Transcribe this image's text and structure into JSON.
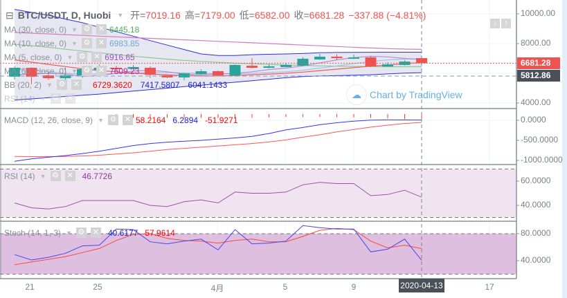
{
  "header": {
    "symbol": "BTC/USDT, D, Huobi",
    "open_label": "开=",
    "open": "7019.16",
    "high_label": "高=",
    "high": "7179.00",
    "low_label": "低=",
    "low": "6582.00",
    "close_label": "收=",
    "close": "6681.28",
    "change": "−337.88 (−4.81%)"
  },
  "legends": {
    "ma30": {
      "label": "MA (30, close, 0)",
      "value": "6445.18",
      "color": "#4caf50"
    },
    "ma10": {
      "label": "MA (10, close, 0)",
      "value": "6983.85",
      "color": "#6fa8dc"
    },
    "ma5": {
      "label": "MA (5, close, 0)",
      "value": "6916.65",
      "color": "#9c4fc0"
    },
    "ma60": {
      "label": "MA (60, close, 0)",
      "value": "7609.23",
      "color": "#b02b8f"
    },
    "bb": {
      "label": "BB (20, 2)",
      "basis": "6729.3620",
      "upper": "7417.5807",
      "lower": "6041.1433"
    },
    "rsi_ghost": {
      "label": "RSI (14)"
    },
    "macd": {
      "label": "MACD (12, 26, close, 9)",
      "hist": "58.2164",
      "macd": "6.2894",
      "signal": "-51.9271"
    },
    "rsi": {
      "label": "RSI (14)",
      "value": "46.7726"
    },
    "stoch": {
      "label": "Stoch (14, 1, 3)",
      "k": "40.6177",
      "d": "57.9614"
    }
  },
  "watermark": "Chart by TradingView",
  "price_axis": {
    "main": [
      "10000.00",
      "8000.00",
      "4000.00"
    ],
    "macd": [
      "0.0000",
      "-500.0000",
      "-1000.0000"
    ],
    "rsi": [
      "60.0000",
      "40.0000"
    ],
    "stoch": [
      "80.0000",
      "40.0000"
    ]
  },
  "badges": {
    "last_price": "6681.28",
    "line_price": "5812.86"
  },
  "time_axis": {
    "labels": [
      "21",
      "25",
      "4月",
      "5",
      "9",
      "17"
    ],
    "crosshair_date": "2020-04-13"
  },
  "colors": {
    "up": "#26a69a",
    "down": "#ef5350",
    "bb_band": "#2a2af0",
    "bb_fill": "#e3e3f0",
    "rsi_fill": "#f1e4f1",
    "stoch_fill": "#dfbfdf"
  },
  "chart_data": {
    "candles": [
      [
        5770,
        6460,
        5580,
        6370
      ],
      [
        6370,
        6400,
        5260,
        5770
      ],
      [
        5860,
        6090,
        5560,
        5670
      ],
      [
        5670,
        6370,
        5260,
        5860
      ],
      [
        5860,
        6510,
        5700,
        6280
      ],
      [
        6230,
        6600,
        6200,
        6370
      ],
      [
        6370,
        6500,
        6150,
        6280
      ],
      [
        6300,
        6560,
        6280,
        6420
      ],
      [
        6370,
        6460,
        5680,
        5900
      ],
      [
        5860,
        5910,
        5680,
        5720
      ],
      [
        5720,
        6050,
        5530,
        5990
      ],
      [
        5950,
        6270,
        5900,
        6140
      ],
      [
        6140,
        6190,
        5800,
        5860
      ],
      [
        5860,
        6600,
        5790,
        6560
      ],
      [
        6510,
        7020,
        6330,
        6370
      ],
      [
        6370,
        6600,
        6330,
        6470
      ],
      [
        6420,
        6700,
        6400,
        6560
      ],
      [
        6510,
        7100,
        6480,
        6980
      ],
      [
        6930,
        7300,
        6900,
        7120
      ],
      [
        7120,
        7280,
        6930,
        7020
      ],
      [
        6980,
        7250,
        6950,
        7070
      ],
      [
        7070,
        7120,
        6420,
        6460
      ],
      [
        6460,
        6750,
        6430,
        6600
      ],
      [
        6560,
        6880,
        6530,
        6790
      ],
      [
        7019.16,
        7179.0,
        6582.0,
        6681.28
      ]
    ],
    "ma60": [
      8750,
      8700,
      8650,
      8600,
      8550,
      8500,
      8450,
      8400,
      8350,
      8300,
      8250,
      8200,
      8150,
      8100,
      8050,
      8000,
      7950,
      7900,
      7850,
      7800,
      7750,
      7700,
      7660,
      7630,
      7609.23
    ],
    "ma30": [
      7950,
      7850,
      7750,
      7620,
      7500,
      7380,
      7260,
      7150,
      7050,
      6950,
      6870,
      6800,
      6740,
      6680,
      6640,
      6600,
      6560,
      6530,
      6500,
      6480,
      6460,
      6450,
      6440,
      6440,
      6445.18
    ],
    "ma10": [
      6300,
      6200,
      6100,
      6000,
      5950,
      5950,
      5980,
      6000,
      6050,
      6050,
      6020,
      6000,
      5980,
      5950,
      6000,
      6050,
      6100,
      6200,
      6350,
      6500,
      6650,
      6800,
      6900,
      6950,
      6983.85
    ],
    "ma5": [
      5900,
      5950,
      6000,
      5950,
      5800,
      5850,
      6000,
      6150,
      6200,
      6100,
      5950,
      5900,
      5950,
      6000,
      6100,
      6250,
      6350,
      6500,
      6700,
      6900,
      7050,
      7150,
      7100,
      7000,
      6916.65
    ],
    "bb_basis": [
      6900,
      6750,
      6600,
      6450,
      6300,
      6180,
      6100,
      6020,
      5950,
      5900,
      5850,
      5820,
      5820,
      5850,
      5900,
      5950,
      6000,
      6080,
      6180,
      6280,
      6380,
      6480,
      6560,
      6640,
      6729.36
    ],
    "bb_upper": [
      10300,
      10100,
      9900,
      9650,
      9400,
      9100,
      8800,
      8500,
      8200,
      7900,
      7600,
      7300,
      7200,
      7200,
      7250,
      7280,
      7300,
      7330,
      7380,
      7400,
      7410,
      7415,
      7417,
      7417,
      7417.58
    ],
    "bb_lower": [
      4200,
      4280,
      4360,
      4440,
      4520,
      4600,
      4700,
      4800,
      4900,
      5000,
      5100,
      5200,
      5300,
      5400,
      5500,
      5600,
      5700,
      5780,
      5820,
      5840,
      5870,
      5900,
      5960,
      6010,
      6041.14
    ],
    "macd": [
      -1020,
      -960,
      -920,
      -880,
      -830,
      -770,
      -700,
      -630,
      -580,
      -545,
      -520,
      -500,
      -470,
      -440,
      -400,
      -330,
      -240,
      -180,
      -110,
      -60,
      -20,
      5,
      10,
      8,
      6.29
    ],
    "signal": [
      -900,
      -905,
      -905,
      -900,
      -890,
      -870,
      -840,
      -810,
      -770,
      -730,
      -700,
      -670,
      -640,
      -610,
      -580,
      -540,
      -490,
      -420,
      -360,
      -290,
      -230,
      -170,
      -120,
      -80,
      -51.93
    ],
    "rsi": [
      42,
      38,
      37,
      39,
      44,
      44,
      44,
      44,
      40,
      39,
      43,
      44.5,
      42,
      51,
      50,
      50,
      51,
      57,
      59,
      58,
      58,
      48,
      49,
      52.5,
      46.77
    ],
    "stoch_k": [
      49,
      41,
      45,
      51,
      62,
      63,
      87,
      86,
      68,
      65,
      69,
      72,
      56,
      86,
      65,
      66,
      69,
      92,
      89,
      87,
      87,
      53,
      57,
      72,
      40.62
    ],
    "stoch_d": [
      34,
      38,
      42,
      46,
      52,
      58,
      70,
      79,
      80,
      73,
      70,
      69,
      66,
      70,
      72,
      68,
      68,
      76,
      85,
      88,
      86,
      69,
      59,
      63,
      57.96
    ],
    "price_lines": {
      "last": 6681.28,
      "marker": 5812.86
    },
    "rsi_bands": [
      30,
      70
    ],
    "stoch_bands": [
      20,
      80
    ]
  }
}
